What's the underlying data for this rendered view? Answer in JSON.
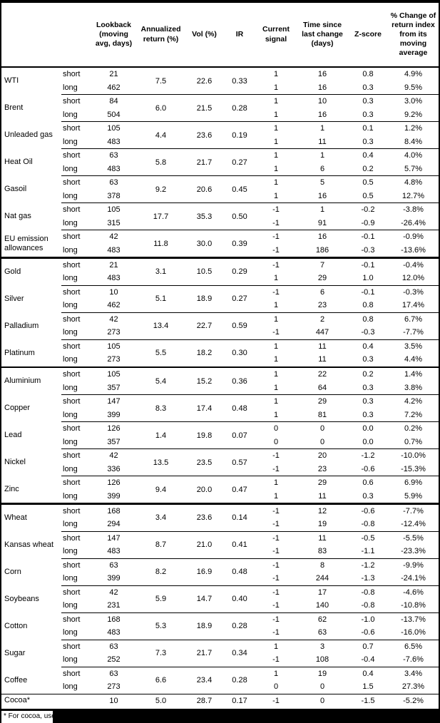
{
  "table": {
    "headers": [
      "Lookback (moving avg, days)",
      "Annualized return (%)",
      "Vol (%)",
      "IR",
      "Current signal",
      "Time since last change (days)",
      "Z-score",
      "% Change of return index from its moving average"
    ],
    "sections": [
      {
        "commodities": [
          {
            "name": "WTI",
            "annualized_return": "7.5",
            "vol": "22.6",
            "ir": "0.33",
            "legs": [
              {
                "label": "short",
                "lookback": "21",
                "signal": "1",
                "time_since": "16",
                "z_score": "0.8",
                "pct_change": "4.9%"
              },
              {
                "label": "long",
                "lookback": "462",
                "signal": "1",
                "time_since": "16",
                "z_score": "0.3",
                "pct_change": "9.5%"
              }
            ]
          },
          {
            "name": "Brent",
            "annualized_return": "6.0",
            "vol": "21.5",
            "ir": "0.28",
            "legs": [
              {
                "label": "short",
                "lookback": "84",
                "signal": "1",
                "time_since": "10",
                "z_score": "0.3",
                "pct_change": "3.0%"
              },
              {
                "label": "long",
                "lookback": "504",
                "signal": "1",
                "time_since": "16",
                "z_score": "0.3",
                "pct_change": "9.2%"
              }
            ]
          },
          {
            "name": "Unleaded gas",
            "annualized_return": "4.4",
            "vol": "23.6",
            "ir": "0.19",
            "legs": [
              {
                "label": "short",
                "lookback": "105",
                "signal": "1",
                "time_since": "1",
                "z_score": "0.1",
                "pct_change": "1.2%"
              },
              {
                "label": "long",
                "lookback": "483",
                "signal": "1",
                "time_since": "11",
                "z_score": "0.3",
                "pct_change": "8.4%"
              }
            ]
          },
          {
            "name": "Heat Oil",
            "annualized_return": "5.8",
            "vol": "21.7",
            "ir": "0.27",
            "legs": [
              {
                "label": "short",
                "lookback": "63",
                "signal": "1",
                "time_since": "1",
                "z_score": "0.4",
                "pct_change": "4.0%"
              },
              {
                "label": "long",
                "lookback": "483",
                "signal": "1",
                "time_since": "6",
                "z_score": "0.2",
                "pct_change": "5.7%"
              }
            ]
          },
          {
            "name": "Gasoil",
            "annualized_return": "9.2",
            "vol": "20.6",
            "ir": "0.45",
            "legs": [
              {
                "label": "short",
                "lookback": "63",
                "signal": "1",
                "time_since": "5",
                "z_score": "0.5",
                "pct_change": "4.8%"
              },
              {
                "label": "long",
                "lookback": "378",
                "signal": "1",
                "time_since": "16",
                "z_score": "0.5",
                "pct_change": "12.7%"
              }
            ]
          },
          {
            "name": "Nat gas",
            "annualized_return": "17.7",
            "vol": "35.3",
            "ir": "0.50",
            "legs": [
              {
                "label": "short",
                "lookback": "105",
                "signal": "-1",
                "time_since": "1",
                "z_score": "-0.2",
                "pct_change": "-3.8%"
              },
              {
                "label": "long",
                "lookback": "315",
                "signal": "-1",
                "time_since": "91",
                "z_score": "-0.9",
                "pct_change": "-26.4%"
              }
            ]
          },
          {
            "name": "EU emission allowances",
            "annualized_return": "11.8",
            "vol": "30.0",
            "ir": "0.39",
            "legs": [
              {
                "label": "short",
                "lookback": "42",
                "signal": "-1",
                "time_since": "16",
                "z_score": "-0.1",
                "pct_change": "-0.9%"
              },
              {
                "label": "long",
                "lookback": "483",
                "signal": "-1",
                "time_since": "186",
                "z_score": "-0.3",
                "pct_change": "-13.6%"
              }
            ]
          }
        ]
      },
      {
        "commodities": [
          {
            "name": "Gold",
            "annualized_return": "3.1",
            "vol": "10.5",
            "ir": "0.29",
            "legs": [
              {
                "label": "short",
                "lookback": "21",
                "signal": "-1",
                "time_since": "7",
                "z_score": "-0.1",
                "pct_change": "-0.4%"
              },
              {
                "label": "long",
                "lookback": "483",
                "signal": "1",
                "time_since": "29",
                "z_score": "1.0",
                "pct_change": "12.0%"
              }
            ]
          },
          {
            "name": "Silver",
            "annualized_return": "5.1",
            "vol": "18.9",
            "ir": "0.27",
            "legs": [
              {
                "label": "short",
                "lookback": "10",
                "signal": "-1",
                "time_since": "6",
                "z_score": "-0.1",
                "pct_change": "-0.3%"
              },
              {
                "label": "long",
                "lookback": "462",
                "signal": "1",
                "time_since": "23",
                "z_score": "0.8",
                "pct_change": "17.4%"
              }
            ]
          },
          {
            "name": "Palladium",
            "annualized_return": "13.4",
            "vol": "22.7",
            "ir": "0.59",
            "legs": [
              {
                "label": "short",
                "lookback": "42",
                "signal": "1",
                "time_since": "2",
                "z_score": "0.8",
                "pct_change": "6.7%"
              },
              {
                "label": "long",
                "lookback": "273",
                "signal": "-1",
                "time_since": "447",
                "z_score": "-0.3",
                "pct_change": "-7.7%"
              }
            ]
          },
          {
            "name": "Platinum",
            "annualized_return": "5.5",
            "vol": "18.2",
            "ir": "0.30",
            "legs": [
              {
                "label": "short",
                "lookback": "105",
                "signal": "1",
                "time_since": "11",
                "z_score": "0.4",
                "pct_change": "3.5%"
              },
              {
                "label": "long",
                "lookback": "273",
                "signal": "1",
                "time_since": "11",
                "z_score": "0.3",
                "pct_change": "4.4%"
              }
            ]
          }
        ]
      },
      {
        "commodities": [
          {
            "name": "Aluminium",
            "annualized_return": "5.4",
            "vol": "15.2",
            "ir": "0.36",
            "legs": [
              {
                "label": "short",
                "lookback": "105",
                "signal": "1",
                "time_since": "22",
                "z_score": "0.2",
                "pct_change": "1.4%"
              },
              {
                "label": "long",
                "lookback": "357",
                "signal": "1",
                "time_since": "64",
                "z_score": "0.3",
                "pct_change": "3.8%"
              }
            ]
          },
          {
            "name": "Copper",
            "annualized_return": "8.3",
            "vol": "17.4",
            "ir": "0.48",
            "legs": [
              {
                "label": "short",
                "lookback": "147",
                "signal": "1",
                "time_since": "29",
                "z_score": "0.3",
                "pct_change": "4.2%"
              },
              {
                "label": "long",
                "lookback": "399",
                "signal": "1",
                "time_since": "81",
                "z_score": "0.3",
                "pct_change": "7.2%"
              }
            ]
          },
          {
            "name": "Lead",
            "annualized_return": "1.4",
            "vol": "19.8",
            "ir": "0.07",
            "legs": [
              {
                "label": "short",
                "lookback": "126",
                "signal": "0",
                "time_since": "0",
                "z_score": "0.0",
                "pct_change": "0.2%"
              },
              {
                "label": "long",
                "lookback": "357",
                "signal": "0",
                "time_since": "0",
                "z_score": "0.0",
                "pct_change": "0.7%"
              }
            ]
          },
          {
            "name": "Nickel",
            "annualized_return": "13.5",
            "vol": "23.5",
            "ir": "0.57",
            "legs": [
              {
                "label": "short",
                "lookback": "42",
                "signal": "-1",
                "time_since": "20",
                "z_score": "-1.2",
                "pct_change": "-10.0%"
              },
              {
                "label": "long",
                "lookback": "336",
                "signal": "-1",
                "time_since": "23",
                "z_score": "-0.6",
                "pct_change": "-15.3%"
              }
            ]
          },
          {
            "name": "Zinc",
            "annualized_return": "9.4",
            "vol": "20.0",
            "ir": "0.47",
            "legs": [
              {
                "label": "short",
                "lookback": "126",
                "signal": "1",
                "time_since": "29",
                "z_score": "0.6",
                "pct_change": "6.9%"
              },
              {
                "label": "long",
                "lookback": "399",
                "signal": "1",
                "time_since": "11",
                "z_score": "0.3",
                "pct_change": "5.9%"
              }
            ]
          }
        ]
      },
      {
        "commodities": [
          {
            "name": "Wheat",
            "annualized_return": "3.4",
            "vol": "23.6",
            "ir": "0.14",
            "legs": [
              {
                "label": "short",
                "lookback": "168",
                "signal": "-1",
                "time_since": "12",
                "z_score": "-0.6",
                "pct_change": "-7.7%"
              },
              {
                "label": "long",
                "lookback": "294",
                "signal": "-1",
                "time_since": "19",
                "z_score": "-0.8",
                "pct_change": "-12.4%"
              }
            ]
          },
          {
            "name": "Kansas wheat",
            "annualized_return": "8.7",
            "vol": "21.0",
            "ir": "0.41",
            "legs": [
              {
                "label": "short",
                "lookback": "147",
                "signal": "-1",
                "time_since": "11",
                "z_score": "-0.5",
                "pct_change": "-5.5%"
              },
              {
                "label": "long",
                "lookback": "483",
                "signal": "-1",
                "time_since": "83",
                "z_score": "-1.1",
                "pct_change": "-23.3%"
              }
            ]
          },
          {
            "name": "Corn",
            "annualized_return": "8.2",
            "vol": "16.9",
            "ir": "0.48",
            "legs": [
              {
                "label": "short",
                "lookback": "63",
                "signal": "-1",
                "time_since": "8",
                "z_score": "-1.2",
                "pct_change": "-9.9%"
              },
              {
                "label": "long",
                "lookback": "399",
                "signal": "-1",
                "time_since": "244",
                "z_score": "-1.3",
                "pct_change": "-24.1%"
              }
            ]
          },
          {
            "name": "Soybeans",
            "annualized_return": "5.9",
            "vol": "14.7",
            "ir": "0.40",
            "legs": [
              {
                "label": "short",
                "lookback": "42",
                "signal": "-1",
                "time_since": "17",
                "z_score": "-0.8",
                "pct_change": "-4.6%"
              },
              {
                "label": "long",
                "lookback": "231",
                "signal": "-1",
                "time_since": "140",
                "z_score": "-0.8",
                "pct_change": "-10.8%"
              }
            ]
          },
          {
            "name": "Cotton",
            "annualized_return": "5.3",
            "vol": "18.9",
            "ir": "0.28",
            "legs": [
              {
                "label": "short",
                "lookback": "168",
                "signal": "-1",
                "time_since": "62",
                "z_score": "-1.0",
                "pct_change": "-13.7%"
              },
              {
                "label": "long",
                "lookback": "483",
                "signal": "-1",
                "time_since": "63",
                "z_score": "-0.6",
                "pct_change": "-16.0%"
              }
            ]
          },
          {
            "name": "Sugar",
            "annualized_return": "7.3",
            "vol": "21.7",
            "ir": "0.34",
            "legs": [
              {
                "label": "short",
                "lookback": "63",
                "signal": "1",
                "time_since": "3",
                "z_score": "0.7",
                "pct_change": "6.5%"
              },
              {
                "label": "long",
                "lookback": "252",
                "signal": "-1",
                "time_since": "108",
                "z_score": "-0.4",
                "pct_change": "-7.6%"
              }
            ]
          },
          {
            "name": "Coffee",
            "annualized_return": "6.6",
            "vol": "23.4",
            "ir": "0.28",
            "legs": [
              {
                "label": "short",
                "lookback": "63",
                "signal": "1",
                "time_since": "19",
                "z_score": "0.4",
                "pct_change": "3.4%"
              },
              {
                "label": "long",
                "lookback": "273",
                "signal": "0",
                "time_since": "0",
                "z_score": "1.5",
                "pct_change": "27.3%"
              }
            ]
          },
          {
            "name": "Cocoa*",
            "annualized_return": "5.0",
            "vol": "28.7",
            "ir": "0.17",
            "legs": [
              {
                "label": "",
                "lookback": "10",
                "signal": "-1",
                "time_since": "0",
                "z_score": "-1.5",
                "pct_change": "-5.2%"
              }
            ]
          }
        ]
      }
    ],
    "footnote": {
      "visible_text": "* For cocoa, uses o"
    }
  }
}
